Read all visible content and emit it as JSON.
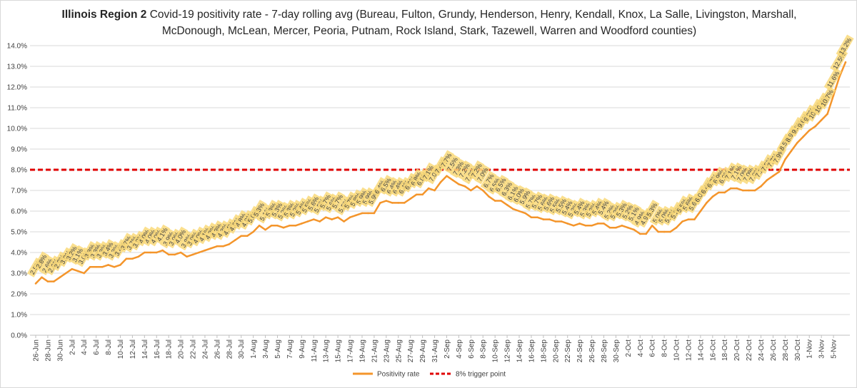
{
  "chart_data": {
    "type": "line",
    "title_bold": "Illinois Region 2",
    "title_rest": " Covid-19 positivity rate - 7-day rolling avg (Bureau, Fulton, Grundy, Henderson, Henry, Kendall, Knox, La Salle, Livingston, Marshall, McDonough, McLean, Mercer, Peoria, Putnam, Rock Island, Stark, Tazewell, Warren and Woodford counties)",
    "ylim": [
      0,
      14
    ],
    "y_ticks": [
      "0.0%",
      "1.0%",
      "2.0%",
      "3.0%",
      "4.0%",
      "5.0%",
      "6.0%",
      "7.0%",
      "8.0%",
      "9.0%",
      "10.0%",
      "11.0%",
      "12.0%",
      "13.0%",
      "14.0%"
    ],
    "x_labels": [
      "26-Jun",
      "28-Jun",
      "30-Jun",
      "2-Jul",
      "4-Jul",
      "6-Jul",
      "8-Jul",
      "10-Jul",
      "12-Jul",
      "14-Jul",
      "16-Jul",
      "18-Jul",
      "20-Jul",
      "22-Jul",
      "24-Jul",
      "26-Jul",
      "28-Jul",
      "30-Jul",
      "1-Aug",
      "3-Aug",
      "5-Aug",
      "7-Aug",
      "9-Aug",
      "11-Aug",
      "13-Aug",
      "15-Aug",
      "17-Aug",
      "19-Aug",
      "21-Aug",
      "23-Aug",
      "25-Aug",
      "27-Aug",
      "29-Aug",
      "31-Aug",
      "2-Sep",
      "4-Sep",
      "6-Sep",
      "8-Sep",
      "10-Sep",
      "12-Sep",
      "14-Sep",
      "16-Sep",
      "18-Sep",
      "20-Sep",
      "22-Sep",
      "24-Sep",
      "26-Sep",
      "28-Sep",
      "30-Sep",
      "2-Oct",
      "4-Oct",
      "6-Oct",
      "8-Oct",
      "10-Oct",
      "12-Oct",
      "14-Oct",
      "16-Oct",
      "18-Oct",
      "20-Oct",
      "22-Oct",
      "24-Oct",
      "26-Oct",
      "28-Oct",
      "30-Oct",
      "1-Nov",
      "3-Nov",
      "5-Nov"
    ],
    "series": [
      {
        "name": "Positivity rate",
        "color": "#f4952b",
        "label_bg": "#f9d97a",
        "values": [
          2.5,
          2.8,
          2.6,
          2.6,
          2.8,
          3.0,
          3.2,
          3.1,
          3.0,
          3.3,
          3.3,
          3.3,
          3.4,
          3.3,
          3.4,
          3.7,
          3.7,
          3.8,
          4.0,
          4.0,
          4.0,
          4.1,
          3.9,
          3.9,
          4.0,
          3.8,
          3.9,
          4.0,
          4.1,
          4.2,
          4.3,
          4.3,
          4.4,
          4.6,
          4.8,
          4.8,
          5.0,
          5.3,
          5.1,
          5.3,
          5.3,
          5.2,
          5.3,
          5.3,
          5.4,
          5.5,
          5.6,
          5.5,
          5.7,
          5.6,
          5.7,
          5.5,
          5.7,
          5.8,
          5.9,
          5.9,
          5.9,
          6.4,
          6.5,
          6.4,
          6.4,
          6.4,
          6.6,
          6.8,
          6.8,
          7.1,
          7.0,
          7.4,
          7.7,
          7.5,
          7.3,
          7.2,
          7.0,
          7.2,
          7.0,
          6.7,
          6.5,
          6.5,
          6.3,
          6.1,
          6.0,
          5.9,
          5.7,
          5.7,
          5.6,
          5.6,
          5.5,
          5.5,
          5.4,
          5.3,
          5.4,
          5.3,
          5.3,
          5.4,
          5.4,
          5.2,
          5.2,
          5.3,
          5.2,
          5.1,
          4.9,
          4.9,
          5.3,
          5.0,
          5.0,
          5.0,
          5.2,
          5.5,
          5.6,
          5.6,
          6.0,
          6.4,
          6.7,
          6.9,
          6.9,
          7.1,
          7.1,
          7.0,
          7.0,
          7.0,
          7.2,
          7.5,
          7.7,
          7.9,
          8.5,
          8.9,
          9.3,
          9.6,
          9.9,
          10.1,
          10.4,
          10.7,
          11.6,
          12.5,
          13.2
        ],
        "data_labels": [
          "2.5%",
          "2.8%",
          "2.6%",
          "2.6%",
          "2.8%",
          "3.0%",
          "3.2%",
          "3.1%",
          "3.0%",
          "3.3%",
          "3.3%",
          "3.3%",
          "3.4%",
          "3.3%",
          "3.4%",
          "3.7%",
          "3.7%",
          "3.8%",
          "4.0%",
          "4.0%",
          "4.0%",
          "4.1%",
          "3.9%",
          "3.9%",
          "4.0%",
          "3.8%",
          "3.9%",
          "4.0%",
          "4.1%",
          "4.2%",
          "4.3%",
          "4.3%",
          "4.4%",
          "4.6%",
          "4.8%",
          "4.8%",
          "5.0%",
          "5.3%",
          "5.1%",
          "5.3%",
          "5.3%",
          "5.2%",
          "5.3%",
          "5.3%",
          "5.4%",
          "5.5%",
          "5.6%",
          "5.5%",
          "5.7%",
          "5.6%",
          "5.7%",
          "5.5%",
          "5.7%",
          "5.8%",
          "5.9%",
          "5.9%",
          "5.9%",
          "6.4%",
          "6.5%",
          "6.4%",
          "6.4%",
          "6.4%",
          "6.6%",
          "6.8%",
          "6.8%",
          "7.1%",
          "7.0%",
          "7.4%",
          "7.7%",
          "7.5%",
          "7.3%",
          "7.2%",
          "7.0%",
          "7.2%",
          "7.0%",
          "6.7%",
          "6.5%",
          "6.5%",
          "6.3%",
          "6.1%",
          "6.0%",
          "5.9%",
          "5.7%",
          "5.7%",
          "5.6%",
          "5.6%",
          "5.5%",
          "5.5%",
          "5.4%",
          "5.3%",
          "5.4%",
          "5.3%",
          "5.3%",
          "5.4%",
          "5.4%",
          "5.2%",
          "5.2%",
          "5.3%",
          "5.2%",
          "5.1%",
          "4.9%",
          "4.9%",
          "5.3%",
          "5.0%",
          "5.0%",
          "5.0%",
          "5.2%",
          "5.5%",
          "5.6%",
          "5.6%",
          "6.0%",
          "6.4%",
          "6.7%",
          "6.9%",
          "6.9%",
          "7.1%",
          "7.1%",
          "7.0%",
          "7.0%",
          "7.0%",
          "7.2%",
          "7.5%",
          "7.7%",
          "7.9%",
          "8.5%",
          "8.9%",
          "9.3%",
          "9.6%",
          "9.9%",
          "10.1%",
          "10.4%",
          "10.7%",
          "11.6%",
          "12.5%",
          "13.2%"
        ]
      },
      {
        "name": "8% trigger point",
        "color": "#e00000",
        "dashed": true,
        "values": [
          8.0
        ]
      }
    ],
    "legend": [
      {
        "label": "Positivity rate",
        "color": "#f4952b",
        "style": "solid"
      },
      {
        "label": "8% trigger point",
        "color": "#e00000",
        "style": "dashed"
      }
    ],
    "legend_position": "bottom",
    "grid": true
  }
}
